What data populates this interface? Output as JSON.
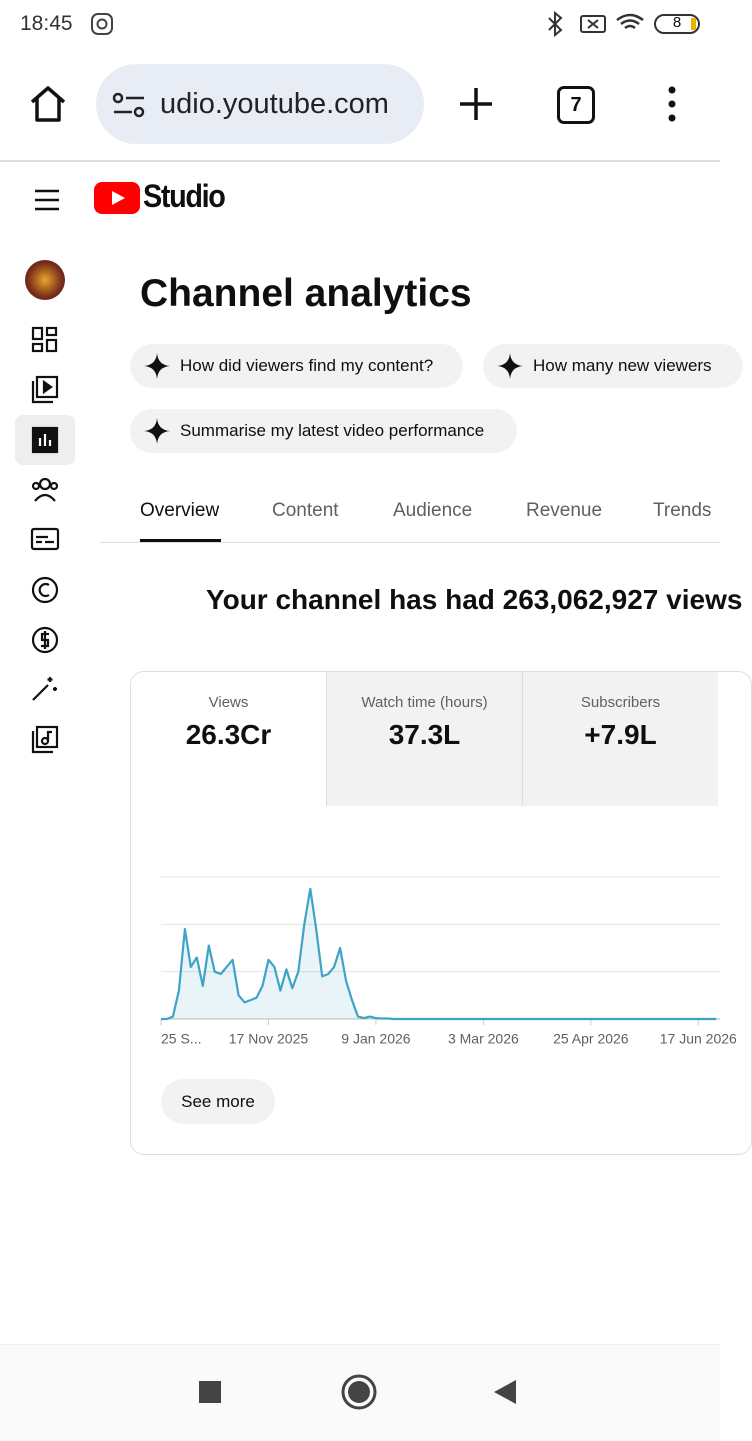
{
  "status_bar": {
    "time": "18:45",
    "battery": "8"
  },
  "browser": {
    "url": "udio.youtube.com",
    "tab_count": "7"
  },
  "header": {
    "logo": "Studio"
  },
  "page": {
    "title": "Channel analytics",
    "suggestions": [
      "How did viewers find my content?",
      "How many new viewers",
      "Summarise my latest video performance"
    ],
    "tabs": [
      "Overview",
      "Content",
      "Audience",
      "Revenue",
      "Trends"
    ],
    "headline": "Your channel has had 263,062,927 views",
    "metrics": [
      {
        "label": "Views",
        "value": "26.3Cr"
      },
      {
        "label": "Watch time (hours)",
        "value": "37.3L"
      },
      {
        "label": "Subscribers",
        "value": "+7.9L"
      }
    ],
    "see_more": "See more"
  },
  "chart_data": {
    "type": "line",
    "color": "#3ea3c6",
    "ylim": [
      0,
      3
    ],
    "gridlines": [
      1,
      2,
      3
    ],
    "categories": [
      "25 S...",
      null,
      null,
      null,
      null,
      null,
      null,
      null,
      null,
      null,
      null,
      null,
      null,
      null,
      null,
      null,
      null,
      null,
      "17 Nov 2025",
      null,
      null,
      null,
      null,
      null,
      null,
      null,
      null,
      null,
      null,
      null,
      null,
      null,
      null,
      null,
      null,
      null,
      "9 Jan 2026",
      null,
      null,
      null,
      null,
      null,
      null,
      null,
      null,
      null,
      null,
      null,
      null,
      null,
      null,
      null,
      null,
      null,
      "3 Mar 2026",
      null,
      null,
      null,
      null,
      null,
      null,
      null,
      null,
      null,
      null,
      null,
      null,
      null,
      null,
      null,
      null,
      null,
      "25 Apr 2026",
      null,
      null,
      null,
      null,
      null,
      null,
      null,
      null,
      null,
      null,
      null,
      null,
      null,
      null,
      null,
      null,
      null,
      "17 Jun 2026",
      null,
      null,
      null
    ],
    "values": [
      0,
      0,
      0.05,
      0.6,
      1.9,
      1.1,
      1.3,
      0.7,
      1.55,
      1.0,
      0.95,
      1.1,
      1.25,
      0.5,
      0.35,
      0.4,
      0.45,
      0.7,
      1.25,
      1.1,
      0.6,
      1.05,
      0.65,
      1.0,
      2.0,
      2.75,
      1.9,
      0.9,
      0.95,
      1.1,
      1.5,
      0.8,
      0.4,
      0.05,
      0.02,
      0.05,
      0.02,
      0.01,
      0.01,
      0,
      0,
      0,
      0,
      0,
      0,
      0,
      0,
      0,
      0,
      0,
      0,
      0,
      0,
      0,
      0,
      0,
      0,
      0,
      0,
      0,
      0,
      0,
      0,
      0,
      0,
      0,
      0,
      0,
      0,
      0,
      0,
      0,
      0,
      0,
      0,
      0,
      0,
      0,
      0,
      0,
      0,
      0,
      0,
      0,
      0,
      0,
      0,
      0,
      0,
      0,
      0,
      0,
      0,
      0
    ]
  }
}
